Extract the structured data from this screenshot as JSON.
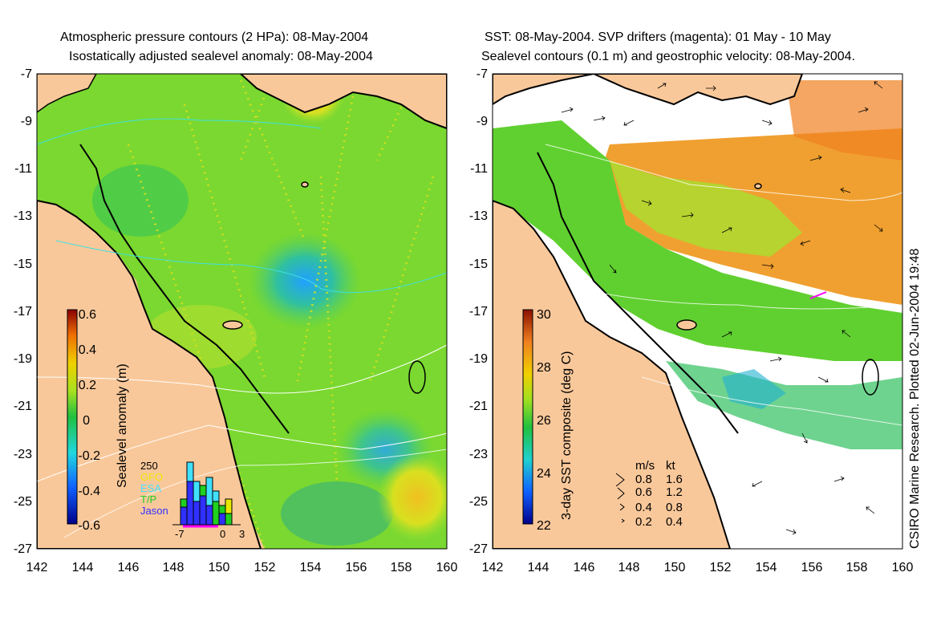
{
  "left_panel": {
    "title_line1": "Atmospheric pressure contours (2 HPa): 08-May-2004",
    "title_line2": "Isostatically adjusted sealevel anomaly: 08-May-2004",
    "y_ticks": [
      "-7",
      "-9",
      "-11",
      "-13",
      "-15",
      "-17",
      "-19",
      "-21",
      "-23",
      "-25",
      "-27"
    ],
    "x_ticks": [
      "142",
      "144",
      "146",
      "148",
      "150",
      "152",
      "154",
      "156",
      "158",
      "160"
    ],
    "colorbar": {
      "label": "Sealevel anomaly (m)",
      "ticks": [
        "0.6",
        "0.4",
        "0.2",
        "0",
        "-0.2",
        "-0.4",
        "-0.6"
      ],
      "min": -0.6,
      "max": 0.6
    },
    "histogram": {
      "ymax_label": "250",
      "x_labels": [
        "-7",
        "0",
        "3"
      ],
      "legend": [
        {
          "name": "GFO",
          "color": "#e8e800"
        },
        {
          "name": "ESA",
          "color": "#40e0ff"
        },
        {
          "name": "T/P",
          "color": "#20d020"
        },
        {
          "name": "Jason",
          "color": "#3030ff"
        }
      ]
    }
  },
  "right_panel": {
    "title_line1": "SST: 08-May-2004. SVP drifters (magenta): 01 May - 10 May",
    "title_line2": "Sealevel contours (0.1 m) and geostrophic velocity: 08-May-2004.",
    "y_ticks": [
      "-7",
      "-9",
      "-11",
      "-13",
      "-15",
      "-17",
      "-19",
      "-21",
      "-23",
      "-25",
      "-27"
    ],
    "x_ticks": [
      "142",
      "144",
      "146",
      "148",
      "150",
      "152",
      "154",
      "156",
      "158",
      "160"
    ],
    "colorbar": {
      "label": "3-day SST composite (deg C)",
      "ticks": [
        "30",
        "28",
        "26",
        "24",
        "22"
      ],
      "min": 22,
      "max": 30
    },
    "velocity_legend": {
      "header_ms": "m/s",
      "header_kt": "kt",
      "rows": [
        {
          "ms": "0.8",
          "kt": "1.6"
        },
        {
          "ms": "0.6",
          "kt": "1.2"
        },
        {
          "ms": "0.4",
          "kt": "0.8"
        },
        {
          "ms": "0.2",
          "kt": "0.4"
        }
      ]
    }
  },
  "credit": "CSIRO Marine Research. Plotted 02-Jun-2004 19:48",
  "colors": {
    "land": "#f9c89a",
    "sea_green": "#6edc2a",
    "sst_orange": "#f0a020",
    "coast": "#000000"
  }
}
